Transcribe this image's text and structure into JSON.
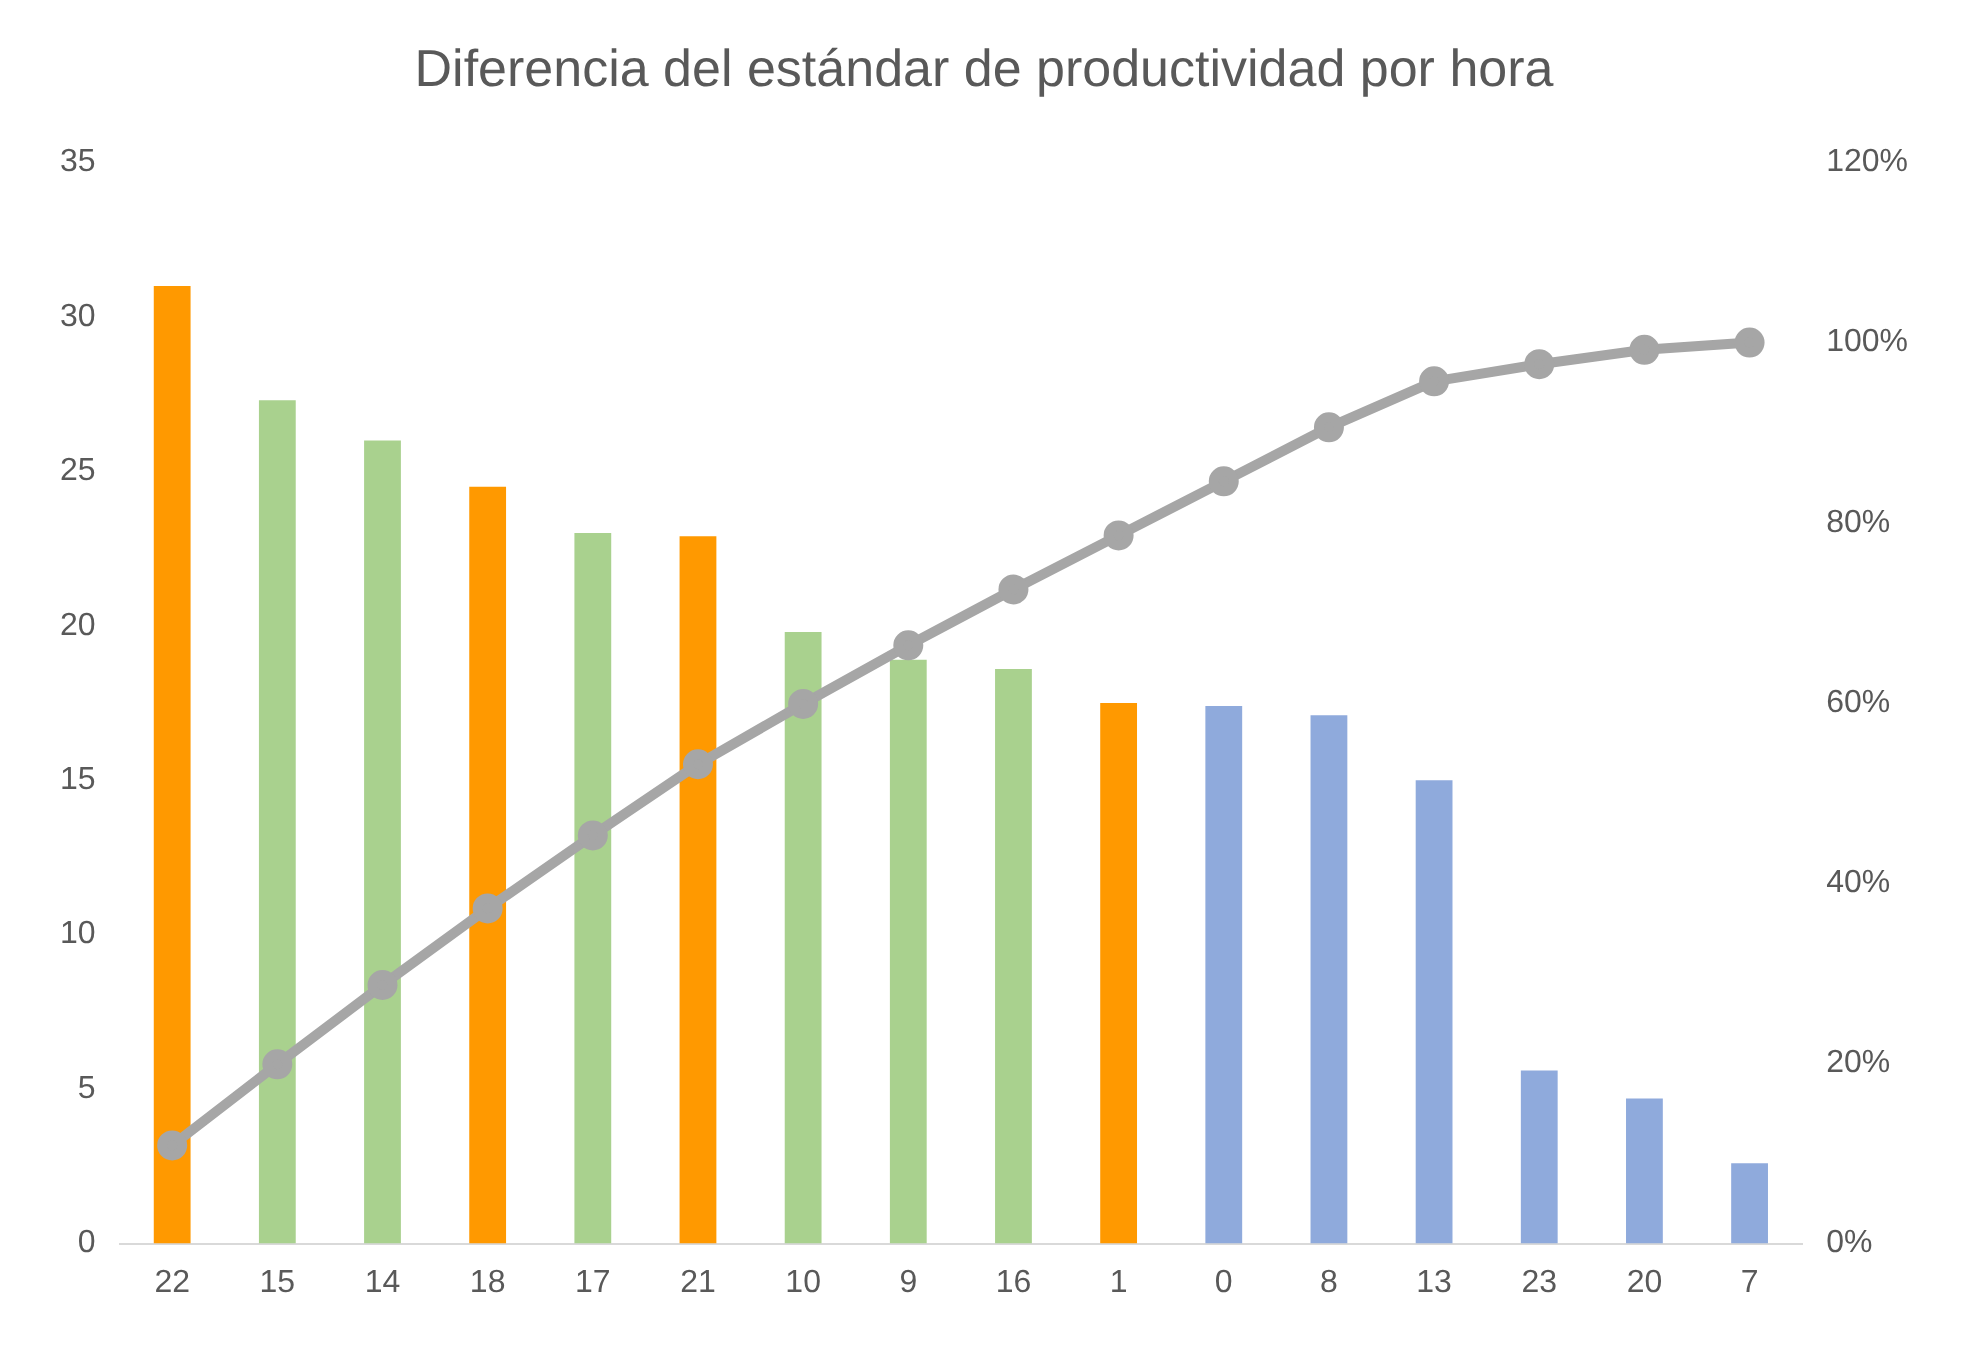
{
  "chart_data": {
    "type": "bar",
    "title": "Diferencia del estándar de productividad por hora",
    "categories": [
      "22",
      "15",
      "14",
      "18",
      "17",
      "21",
      "10",
      "9",
      "16",
      "1",
      "0",
      "8",
      "13",
      "23",
      "20",
      "7"
    ],
    "series": [
      {
        "colors": [
          "#ff9900",
          "#a9d18e",
          "#a9d18e",
          "#ff9900",
          "#a9d18e",
          "#ff9900",
          "#a9d18e",
          "#a9d18e",
          "#a9d18e",
          "#ff9900",
          "#8faadc",
          "#8faadc",
          "#8faadc",
          "#8faadc",
          "#8faadc",
          "#8faadc"
        ],
        "values": [
          31.0,
          27.3,
          26.0,
          24.5,
          23.0,
          22.9,
          19.8,
          18.9,
          18.6,
          17.5,
          17.4,
          17.1,
          15.0,
          5.6,
          4.7,
          2.6
        ]
      },
      {
        "type": "line",
        "axis": "y2",
        "color": "#a6a6a6",
        "marker": "circle",
        "values": [
          10.9,
          19.9,
          28.7,
          37.2,
          45.3,
          53.2,
          59.9,
          66.4,
          72.6,
          78.6,
          84.6,
          90.6,
          95.7,
          97.6,
          99.2,
          100
        ]
      }
    ],
    "ylim": [
      0,
      35
    ],
    "yticks": [
      0,
      5,
      10,
      15,
      20,
      25,
      30,
      35
    ],
    "y2lim": [
      0,
      120
    ],
    "y2ticks": [
      {
        "value": 0,
        "label": "0%"
      },
      {
        "value": 20,
        "label": "20%"
      },
      {
        "value": 40,
        "label": "40%"
      },
      {
        "value": 60,
        "label": "60%"
      },
      {
        "value": 80,
        "label": "80%"
      },
      {
        "value": 100,
        "label": "100%"
      },
      {
        "value": 120,
        "label": "120%"
      }
    ],
    "grid": false,
    "legend": false
  }
}
